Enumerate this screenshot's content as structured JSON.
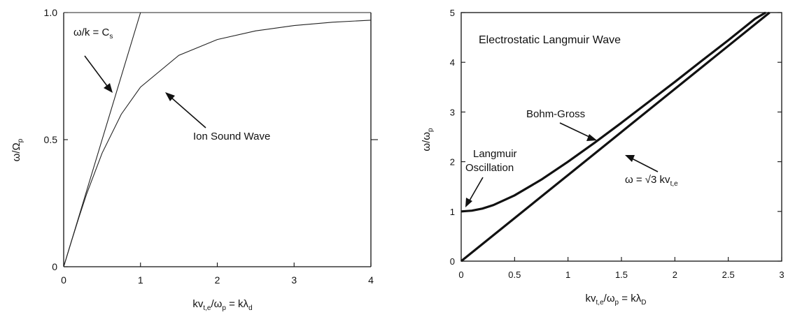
{
  "chart_data": [
    {
      "type": "line",
      "title": "",
      "xlabel": {
        "main": "kv",
        "sub1": "t,e",
        "mid": "/ω",
        "sub2": "p",
        "tail": " = kλ",
        "sub3": "d"
      },
      "ylabel": {
        "main": "ω/Ω",
        "sub": "p"
      },
      "xlim": [
        0,
        4
      ],
      "ylim": [
        0,
        1
      ],
      "xticks": [
        0,
        1,
        2,
        3,
        4
      ],
      "xtick_labels": [
        "0",
        "1",
        "2",
        "3",
        "4"
      ],
      "yticks": [
        0,
        0.5,
        1.0
      ],
      "ytick_labels": [
        "0",
        "0.5",
        "1.0"
      ],
      "grid": false,
      "series": [
        {
          "name": "",
          "x": [
            0,
            0.1,
            0.2,
            0.3,
            0.5,
            0.75,
            1.0,
            1.5,
            2.0,
            2.5,
            3.0,
            3.5,
            4.0
          ],
          "y": [
            0,
            0.0995,
            0.196,
            0.287,
            0.447,
            0.6,
            0.707,
            0.832,
            0.894,
            0.928,
            0.949,
            0.962,
            0.97
          ]
        },
        {
          "name": "",
          "x": [
            0,
            1.0
          ],
          "y": [
            0,
            1.0
          ]
        },
        {
          "name": "",
          "x": [
            0,
            4.0
          ],
          "y": [
            1.0,
            1.0
          ]
        }
      ],
      "annotations": [
        {
          "text": "ω/k = C",
          "sub": "s",
          "arrow_to": [
            0.63,
            0.68
          ]
        },
        {
          "text": "Ion Sound Wave",
          "sub": "",
          "arrow_to": [
            1.3,
            0.78
          ]
        }
      ]
    },
    {
      "type": "line",
      "title": "",
      "xlabel": {
        "main": "kv",
        "sub1": "t,e",
        "mid": "/ω",
        "sub2": "p",
        "tail": " = kλ",
        "sub3": "D"
      },
      "ylabel": {
        "main": "ω/ω",
        "sub": "p"
      },
      "xlim": [
        0,
        3
      ],
      "ylim": [
        0,
        5
      ],
      "xticks": [
        0,
        0.5,
        1,
        1.5,
        2,
        2.5,
        3
      ],
      "xtick_labels": [
        "0",
        "0.5",
        "1",
        "1.5",
        "2",
        "2.5",
        "3"
      ],
      "yticks": [
        0,
        1,
        2,
        3,
        4,
        5
      ],
      "ytick_labels": [
        "0",
        "1",
        "2",
        "3",
        "4",
        "5"
      ],
      "grid": false,
      "series": [
        {
          "name": "",
          "x": [
            0,
            0.1,
            0.2,
            0.3,
            0.5,
            0.75,
            1.0,
            1.25,
            1.5,
            1.75,
            2.0,
            2.25,
            2.5,
            2.75,
            2.85
          ],
          "y": [
            1.0,
            1.015,
            1.058,
            1.127,
            1.323,
            1.639,
            2.0,
            2.384,
            2.784,
            3.195,
            3.606,
            4.027,
            4.444,
            4.873,
            5.0
          ]
        },
        {
          "name": "",
          "x": [
            0,
            1.0,
            2.0,
            2.887
          ],
          "y": [
            0,
            1.732,
            3.464,
            5.0
          ]
        }
      ],
      "annotations": [
        {
          "text": "Electrostatic Langmuir Wave",
          "sub": ""
        },
        {
          "text": "Bohm-Gross",
          "sub": "",
          "arrow_to": [
            1.3,
            2.5
          ]
        },
        {
          "text": "Langmuir",
          "sub": ""
        },
        {
          "text": "Oscillation",
          "sub": "",
          "arrow_to": [
            0.03,
            1.0
          ]
        },
        {
          "text": "ω = √3 kv",
          "sub": "t,e",
          "arrow_to": [
            1.42,
            2.5
          ]
        }
      ]
    }
  ]
}
